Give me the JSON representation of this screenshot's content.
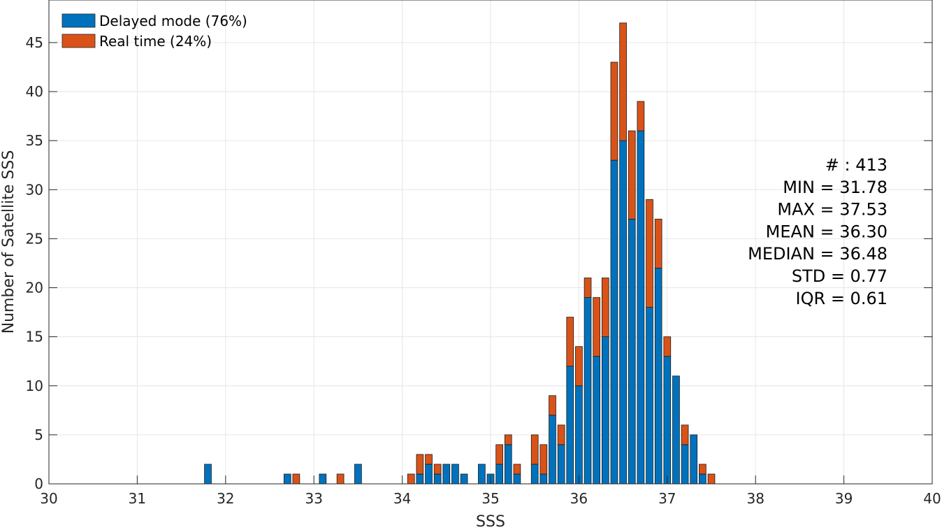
{
  "chart_data": {
    "type": "bar",
    "stacked": true,
    "xlabel": "SSS",
    "ylabel": "Number of Satellite SSS",
    "xlim": [
      30,
      40
    ],
    "ylim": [
      0,
      48
    ],
    "xticks": [
      "30",
      "31",
      "32",
      "33",
      "34",
      "35",
      "36",
      "37",
      "38",
      "39",
      "40"
    ],
    "yticks": [
      "0",
      "5",
      "10",
      "15",
      "20",
      "25",
      "30",
      "35",
      "40",
      "45"
    ],
    "grid": true,
    "legend_position": "top-left",
    "bin_width": 0.1,
    "x": [
      31.8,
      32.7,
      32.8,
      33.1,
      33.3,
      33.5,
      34.1,
      34.2,
      34.3,
      34.4,
      34.5,
      34.6,
      34.7,
      34.9,
      35.0,
      35.1,
      35.2,
      35.3,
      35.5,
      35.6,
      35.7,
      35.8,
      35.9,
      36.0,
      36.1,
      36.2,
      36.3,
      36.4,
      36.5,
      36.6,
      36.7,
      36.8,
      36.9,
      37.0,
      37.1,
      37.2,
      37.3,
      37.4,
      37.5
    ],
    "series": [
      {
        "name": "Delayed mode (76%)",
        "color": "#0072BD",
        "values": [
          2,
          1,
          0,
          1,
          0,
          2,
          0,
          1,
          2,
          1,
          2,
          2,
          1,
          2,
          1,
          2,
          4,
          1,
          2,
          1,
          7,
          4,
          12,
          10,
          19,
          13,
          15,
          33,
          35,
          27,
          36,
          18,
          22,
          13,
          11,
          4,
          5,
          1,
          0
        ]
      },
      {
        "name": "Real time (24%)",
        "color": "#D95319",
        "values": [
          0,
          0,
          1,
          0,
          1,
          0,
          1,
          2,
          1,
          1,
          0,
          0,
          0,
          0,
          0,
          2,
          1,
          1,
          3,
          3,
          2,
          2,
          5,
          4,
          2,
          6,
          6,
          10,
          12,
          9,
          3,
          11,
          5,
          2,
          0,
          2,
          0,
          1,
          1
        ]
      }
    ],
    "annotations": [
      "# : 413",
      "MIN = 31.78",
      "MAX =  37.53",
      "MEAN = 36.30",
      "MEDIAN = 36.48",
      "STD = 0.77",
      "IQR = 0.61"
    ]
  }
}
